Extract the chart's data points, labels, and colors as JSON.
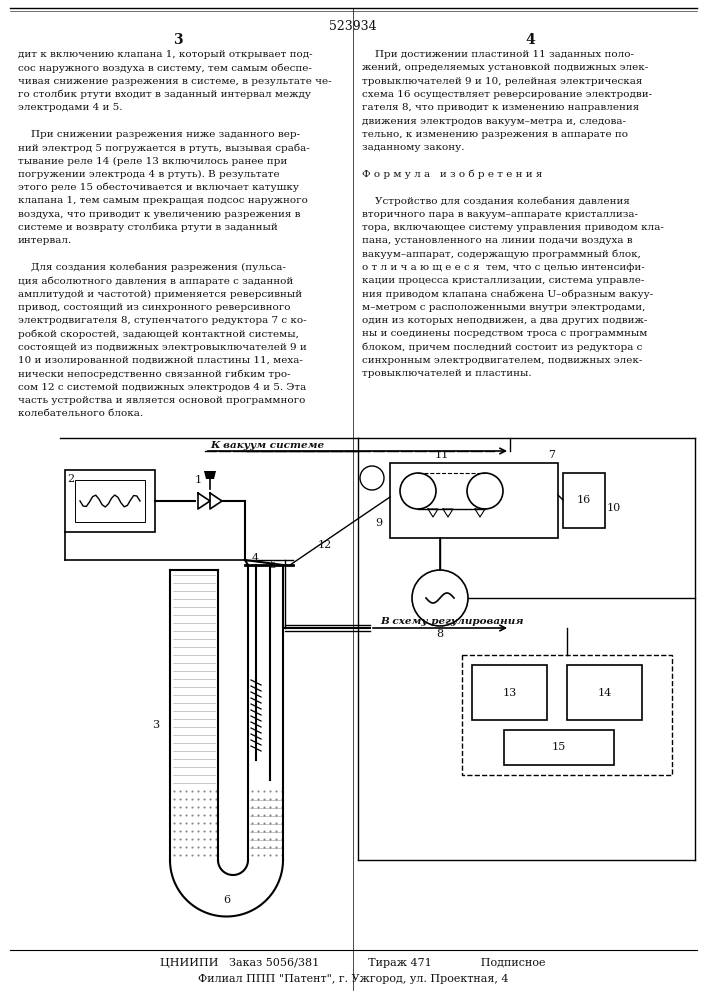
{
  "patent_number": "523934",
  "col1_text": [
    "дит к включению клапана 1, который открывает под-",
    "сос наружного воздуха в систему, тем самым обеспе-",
    "чивая снижение разрежения в системе, в результате че-",
    "го столбик ртути входит в заданный интервал между",
    "электродами 4 и 5.",
    "",
    "    При снижении разрежения ниже заданного вер-",
    "ний электрод 5 погружается в ртуть, вызывая сраба-",
    "тывание реле 14 (реле 13 включилось ранее при",
    "погружении электрода 4 в ртуть). В результате",
    "этого реле 15 обесточивается и включает катушку",
    "клапана 1, тем самым прекращая подсос наружного",
    "воздуха, что приводит к увеличению разрежения в",
    "системе и возврату столбика ртути в заданный",
    "интервал.",
    "",
    "    Для создания колебания разрежения (пульса-",
    "ция абсолютного давления в аппарате с заданной",
    "амплитудой и частотой) применяется реверсивный",
    "привод, состоящий из синхронного реверсивного",
    "электродвигателя 8, ступенчатого редуктора 7 с ко-",
    "робкой скоростей, задающей контактной системы,",
    "состоящей из подвижных электровыключателей 9 и",
    "10 и изолированной подвижной пластины 11, меха-",
    "нически непосредственно связанной гибким тро-",
    "сом 12 с системой подвижных электродов 4 и 5. Эта",
    "часть устройства и является основой программного",
    "колебательного блока."
  ],
  "col2_text": [
    "    При достижении пластиной 11 заданных поло-",
    "жений, определяемых установкой подвижных элек-",
    "тровыключателей 9 и 10, релейная электрическая",
    "схема 16 осуществляет реверсирование электродви-",
    "гателя 8, что приводит к изменению направления",
    "движения электродов вакуум–метра и, следова-",
    "тельно, к изменению разрежения в аппарате по",
    "заданному закону.",
    "",
    "Ф о р м у л а   и з о б р е т е н и я",
    "",
    "    Устройство для создания колебания давления",
    "вторичного пара в вакуум–аппарате кристаллиза-",
    "тора, включающее систему управления приводом кла-",
    "пана, установленного на линии подачи воздуха в",
    "вакуум–аппарат, содержащую программный блок,",
    "о т л и ч а ю щ е е с я  тем, что с целью интенсифи-",
    "кации процесса кристаллизации, система управле-",
    "ния приводом клапана снабжена U–образным вакуу-",
    "м–метром с расположенными внутри электродами,",
    "один из которых неподвижен, а два других подвиж-",
    "ны и соединены посредством троса с программным",
    "блоком, причем последний состоит из редуктора с",
    "синхронным электродвигателем, подвижных элек-",
    "тровыключателей и пластины."
  ],
  "bottom_text": "ЦНИИПИ   Заказ 5056/381              Тираж 471              Подписное",
  "footer_text": "Филиал ППП \"Патент\", г. Ужгород, ул. Проектная, 4",
  "arrow_label_vacuum": "К вакуум системе",
  "arrow_label_regulation": "В схему регулирования"
}
